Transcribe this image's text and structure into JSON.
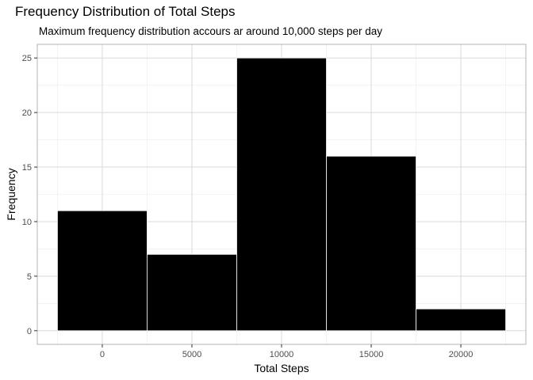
{
  "chart_data": {
    "type": "bar",
    "title": "Frequency Distribution of Total Steps",
    "subtitle": "Maximum frequency distribution accours ar around 10,000 steps per day",
    "xlabel": "Total Steps",
    "ylabel": "Frequency",
    "bins": [
      {
        "x_start": -2500,
        "x_end": 2500,
        "value": 11
      },
      {
        "x_start": 2500,
        "x_end": 7500,
        "value": 7
      },
      {
        "x_start": 7500,
        "x_end": 12500,
        "value": 25
      },
      {
        "x_start": 12500,
        "x_end": 17500,
        "value": 16
      },
      {
        "x_start": 17500,
        "x_end": 22500,
        "value": 2
      }
    ],
    "x_ticks": [
      0,
      5000,
      10000,
      15000,
      20000
    ],
    "x_tick_labels": [
      "0",
      "5000",
      "10000",
      "15000",
      "20000"
    ],
    "y_ticks": [
      0,
      5,
      10,
      15,
      20,
      25
    ],
    "y_tick_labels": [
      "0",
      "5",
      "10",
      "15",
      "20",
      "25"
    ],
    "xlim": [
      -3625,
      23625
    ],
    "ylim": [
      -1.25,
      26.25
    ],
    "grid": true,
    "colors": {
      "bar_fill": "#000000",
      "bar_outline": "#ffffff",
      "grid_major": "#d9d9d9",
      "grid_minor": "#ebebeb",
      "panel_border": "#b3b3b3"
    }
  }
}
